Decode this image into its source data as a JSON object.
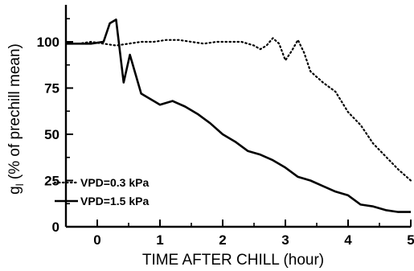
{
  "chart_data": {
    "type": "line",
    "xlabel": "TIME AFTER CHILL (hour)",
    "ylabel": "g",
    "ylabel_subscript": "l",
    "ylabel_suffix": " (% of prechill mean)",
    "xlim": [
      -0.5,
      5
    ],
    "ylim": [
      0,
      120
    ],
    "x_ticks": [
      0,
      1,
      2,
      3,
      4,
      5
    ],
    "x_tick_labels": [
      "0",
      "1",
      "2",
      "3",
      "4",
      "5"
    ],
    "y_ticks": [
      0,
      25,
      50,
      75,
      100
    ],
    "y_tick_labels": [
      "0",
      "25",
      "50",
      "75",
      "100"
    ],
    "grid": false,
    "legend_position": "bottom-left",
    "series": [
      {
        "name": "VPD=0.3 kPa",
        "style": "dotted",
        "color": "#000000",
        "x": [
          -0.5,
          -0.3,
          -0.1,
          0.1,
          0.3,
          0.5,
          0.7,
          0.9,
          1.1,
          1.3,
          1.5,
          1.7,
          1.9,
          2.1,
          2.3,
          2.5,
          2.6,
          2.7,
          2.8,
          2.9,
          3.0,
          3.1,
          3.2,
          3.3,
          3.4,
          3.6,
          3.8,
          4.0,
          4.2,
          4.4,
          4.6,
          4.8,
          5.0
        ],
        "y": [
          99,
          99,
          100,
          99,
          98,
          99,
          100,
          100,
          101,
          101,
          100,
          99,
          100,
          100,
          100,
          98,
          96,
          98,
          102,
          99,
          90,
          95,
          101,
          94,
          84,
          78,
          73,
          62,
          55,
          45,
          38,
          31,
          25
        ]
      },
      {
        "name": "VPD=1.5 kPa",
        "style": "solid",
        "color": "#000000",
        "x": [
          -0.5,
          -0.3,
          -0.1,
          0.1,
          0.2,
          0.3,
          0.42,
          0.52,
          0.7,
          0.8,
          1.0,
          1.2,
          1.4,
          1.6,
          1.8,
          2.0,
          2.2,
          2.4,
          2.6,
          2.8,
          3.0,
          3.2,
          3.4,
          3.6,
          3.8,
          4.0,
          4.2,
          4.4,
          4.6,
          4.8,
          5.0
        ],
        "y": [
          99,
          99,
          99,
          100,
          110,
          112,
          78,
          93,
          72,
          70,
          66,
          68,
          65,
          61,
          56,
          50,
          46,
          41,
          39,
          36,
          32,
          27,
          25,
          22,
          19,
          17,
          12,
          11,
          9,
          8,
          8
        ]
      }
    ]
  }
}
